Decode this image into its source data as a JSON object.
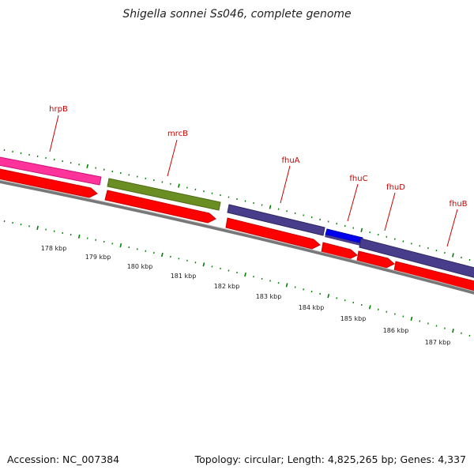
{
  "title": "Shigella sonnei Ss046, complete genome",
  "footer": {
    "accession": "Accession: NC_007384",
    "summary": "Topology: circular; Length: 4,825,265 bp; Genes: 4,337"
  },
  "colors": {
    "gene_label": "#cc0000",
    "cds": "#ff0000",
    "tick": "#008000",
    "backbone": "#777777",
    "hrpB": "#ff3399",
    "mrcB": "#6b8e23",
    "fhu_operon": "#483d8b",
    "fhuC": "#0000ee"
  },
  "genes": [
    {
      "name": "hrpB",
      "color_key": "hrpB"
    },
    {
      "name": "mrcB",
      "color_key": "mrcB"
    },
    {
      "name": "fhuA",
      "color_key": "fhu_operon"
    },
    {
      "name": "fhuC",
      "color_key": "fhuC"
    },
    {
      "name": "fhuD",
      "color_key": "fhu_operon"
    },
    {
      "name": "fhuB",
      "color_key": "fhu_operon"
    }
  ],
  "scale": {
    "labels": [
      "178 kbp",
      "179 kbp",
      "180 kbp",
      "181 kbp",
      "182 kbp",
      "183 kbp",
      "184 kbp",
      "185 kbp",
      "186 kbp",
      "187 kbp"
    ]
  }
}
